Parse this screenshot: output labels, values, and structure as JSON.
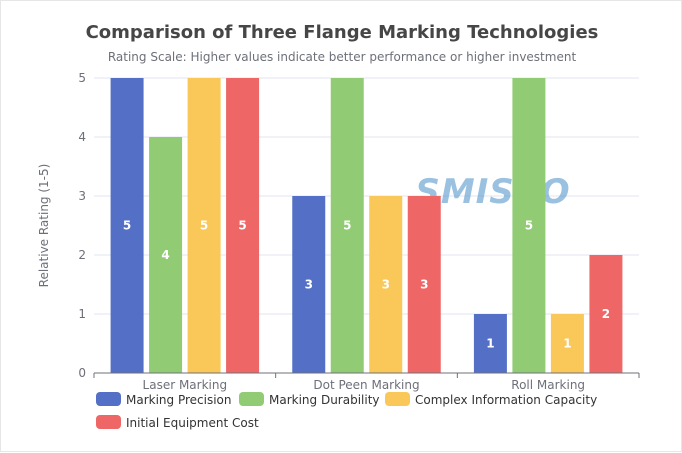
{
  "chart_data": {
    "type": "bar",
    "title": "Comparison of Three Flange Marking Technologies",
    "subtitle": "Rating Scale: Higher values indicate better performance or higher investment",
    "xlabel": "",
    "ylabel": "Relative Rating (1-5)",
    "ylim": [
      0,
      5
    ],
    "yticks": [
      0,
      1,
      2,
      3,
      4,
      5
    ],
    "grid": true,
    "legend_position": "bottom-left",
    "categories": [
      "Laser Marking",
      "Dot Peen Marking",
      "Roll Marking"
    ],
    "series": [
      {
        "name": "Marking Precision",
        "color": "#5470c6",
        "values": [
          5,
          3,
          1
        ]
      },
      {
        "name": "Marking Durability",
        "color": "#91cc75",
        "values": [
          4,
          5,
          5
        ]
      },
      {
        "name": "Complex Information Capacity",
        "color": "#fac858",
        "values": [
          5,
          3,
          1
        ]
      },
      {
        "name": "Initial Equipment Cost",
        "color": "#ee6666",
        "values": [
          5,
          3,
          2
        ]
      }
    ],
    "watermark": "SMISCO"
  }
}
